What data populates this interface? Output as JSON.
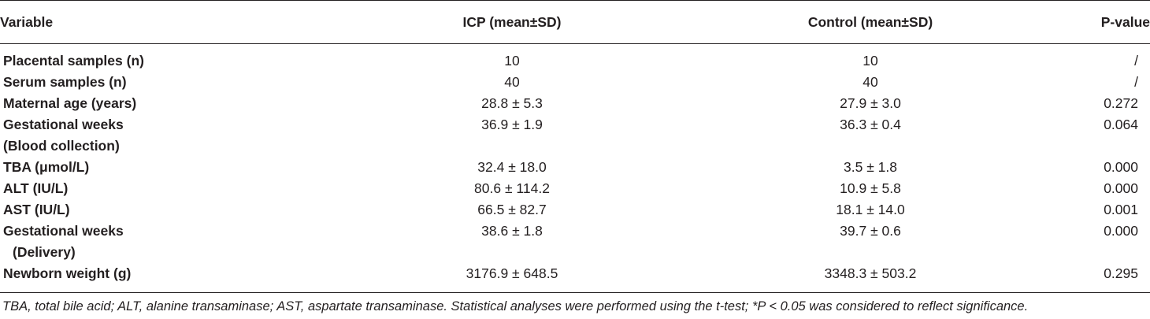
{
  "table": {
    "headers": {
      "variable": "Variable",
      "icp": "ICP (mean±SD)",
      "control": "Control (mean±SD)",
      "p": "P-value"
    },
    "rows": [
      {
        "variable": "Placental samples (n)",
        "variable2": "",
        "icp": "10",
        "control": "10",
        "p": "/"
      },
      {
        "variable": "Serum samples (n)",
        "variable2": "",
        "icp": "40",
        "control": "40",
        "p": "/"
      },
      {
        "variable": "Maternal age (years)",
        "variable2": "",
        "icp": "28.8 ± 5.3",
        "control": "27.9 ± 3.0",
        "p": "0.272"
      },
      {
        "variable": "Gestational weeks",
        "variable2": "(Blood collection)",
        "icp": "36.9 ± 1.9",
        "control": "36.3 ± 0.4",
        "p": "0.064"
      },
      {
        "variable": "TBA (μmol/L)",
        "variable2": "",
        "icp": "32.4 ± 18.0",
        "control": "3.5 ± 1.8",
        "p": "0.000"
      },
      {
        "variable": "ALT (IU/L)",
        "variable2": "",
        "icp": "80.6 ± 114.2",
        "control": "10.9 ± 5.8",
        "p": "0.000"
      },
      {
        "variable": "AST (IU/L)",
        "variable2": "",
        "icp": "66.5 ± 82.7",
        "control": "18.1 ± 14.0",
        "p": "0.001"
      },
      {
        "variable": "Gestational weeks",
        "variable2": "(Delivery)",
        "icp": "38.6 ± 1.8",
        "control": "39.7 ± 0.6",
        "p": "0.000"
      },
      {
        "variable": "Newborn weight (g)",
        "variable2": "",
        "icp": "3176.9 ± 648.5",
        "control": "3348.3 ± 503.2",
        "p": "0.295"
      }
    ]
  },
  "footnote": "TBA, total bile acid; ALT, alanine transaminase; AST, aspartate transaminase. Statistical analyses were performed using the t-test; *P < 0.05 was considered to reflect significance."
}
